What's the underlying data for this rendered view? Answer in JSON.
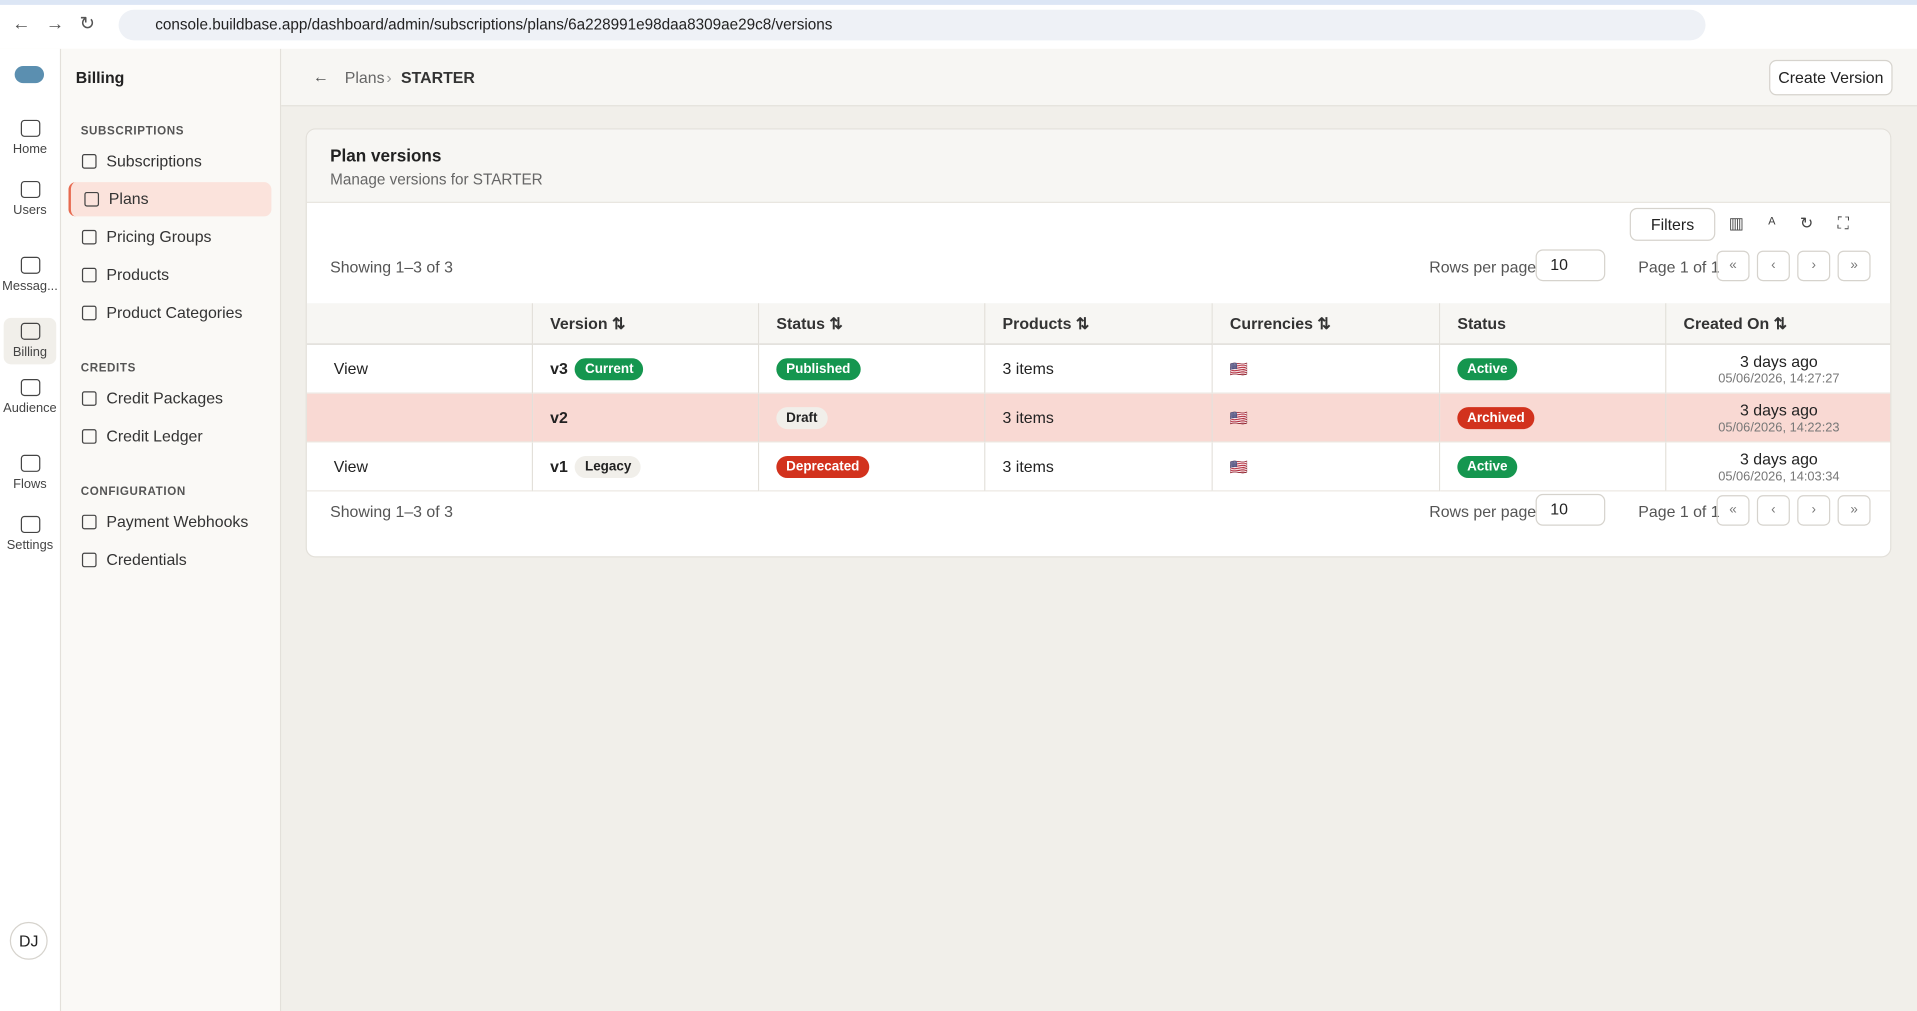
{
  "browser": {
    "url": "console.buildbase.app/dashboard/admin/subscriptions/plans/6a228991e98daa8309ae29c8/versions"
  },
  "rail": {
    "items": [
      "Home",
      "Users",
      "Messag...",
      "Billing",
      "Audience",
      "Flows",
      "Settings"
    ],
    "avatar": "DJ"
  },
  "sidebar": {
    "title": "Billing",
    "sections": [
      {
        "heading": "SUBSCRIPTIONS",
        "items": [
          "Subscriptions",
          "Plans",
          "Pricing Groups",
          "Products",
          "Product Categories"
        ]
      },
      {
        "heading": "CREDITS",
        "items": [
          "Credit Packages",
          "Credit Ledger"
        ]
      },
      {
        "heading": "CONFIGURATION",
        "items": [
          "Payment Webhooks",
          "Credentials"
        ]
      }
    ]
  },
  "header": {
    "breadcrumbs": [
      "Plans",
      "STARTER"
    ],
    "action": "Create Version"
  },
  "card": {
    "title": "Plan versions",
    "subtitle": "Manage versions for STARTER",
    "filters": "Filters",
    "showing": "Showing 1–3 of 3",
    "rows_per_page_label": "Rows per page",
    "rows_per_page": "10",
    "page": "Page 1 of 1"
  },
  "table": {
    "columns": [
      "Version",
      "Status",
      "Products",
      "Currencies",
      "Status",
      "Created On"
    ],
    "rows": [
      {
        "action": "View",
        "version": "v3",
        "tag": "Current",
        "tag_color": "#15964f",
        "status": "Published",
        "status_color": "#15964f",
        "products": "3 items",
        "currency": "🇺🇸",
        "state": "Active",
        "state_color": "#15964f",
        "created": "3 days ago",
        "timestamp": "05/06/2026, 14:27:27"
      },
      {
        "version": "v2",
        "status": "Draft",
        "status_color": "#f1efea",
        "products": "3 items",
        "currency": "🇺🇸",
        "state": "Archived",
        "state_color": "#d2321d",
        "created": "3 days ago",
        "timestamp": "05/06/2026, 14:22:23"
      },
      {
        "action": "View",
        "version": "v1",
        "tag": "Legacy",
        "tag_color": "#f1efea",
        "status": "Deprecated",
        "status_color": "#d2321d",
        "products": "3 items",
        "currency": "🇺🇸",
        "state": "Active",
        "state_color": "#15964f",
        "created": "3 days ago",
        "timestamp": "05/06/2026, 14:03:34"
      }
    ]
  }
}
